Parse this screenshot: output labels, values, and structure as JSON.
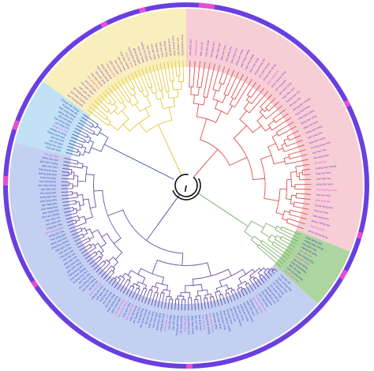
{
  "figure": {
    "type": "circular-phylogenetic-tree",
    "clades": [
      {
        "id": "pink",
        "clade_color": "#d9534f",
        "background": "#f6c6cf",
        "label_color": "#7b2fbf",
        "leaf_count": 48
      },
      {
        "id": "green",
        "clade_color": "#7fae6b",
        "background": "#9fce8e",
        "label_color": "#3b2fbf",
        "leaf_count": 12
      },
      {
        "id": "purple",
        "clade_color": "#6a4ea3",
        "background": "#b9c8ef",
        "label_color": "#2d3fbf",
        "leaf_count": 96
      },
      {
        "id": "blue",
        "clade_color": "#4f5fb0",
        "background": "#b6dcf2",
        "label_color": "#2b3db8",
        "leaf_count": 14
      },
      {
        "id": "yellow",
        "clade_color": "#e3c73a",
        "background": "#f7ecb0",
        "label_color": "#7b2fbf",
        "leaf_count": 30
      }
    ],
    "root_color": "#111111",
    "outer_ring": {
      "color": "#6a3fe0",
      "highlight_color": "#e64fd0"
    },
    "sample_label_words": [
      "guo",
      "lan",
      "zhi",
      "ying",
      "huang",
      "xian",
      "qing",
      "mei",
      "tian",
      "long",
      "yan",
      "bao",
      "shan",
      "zhu",
      "jiang",
      "hong",
      "san",
      "cheng",
      "wan",
      "ling"
    ]
  }
}
